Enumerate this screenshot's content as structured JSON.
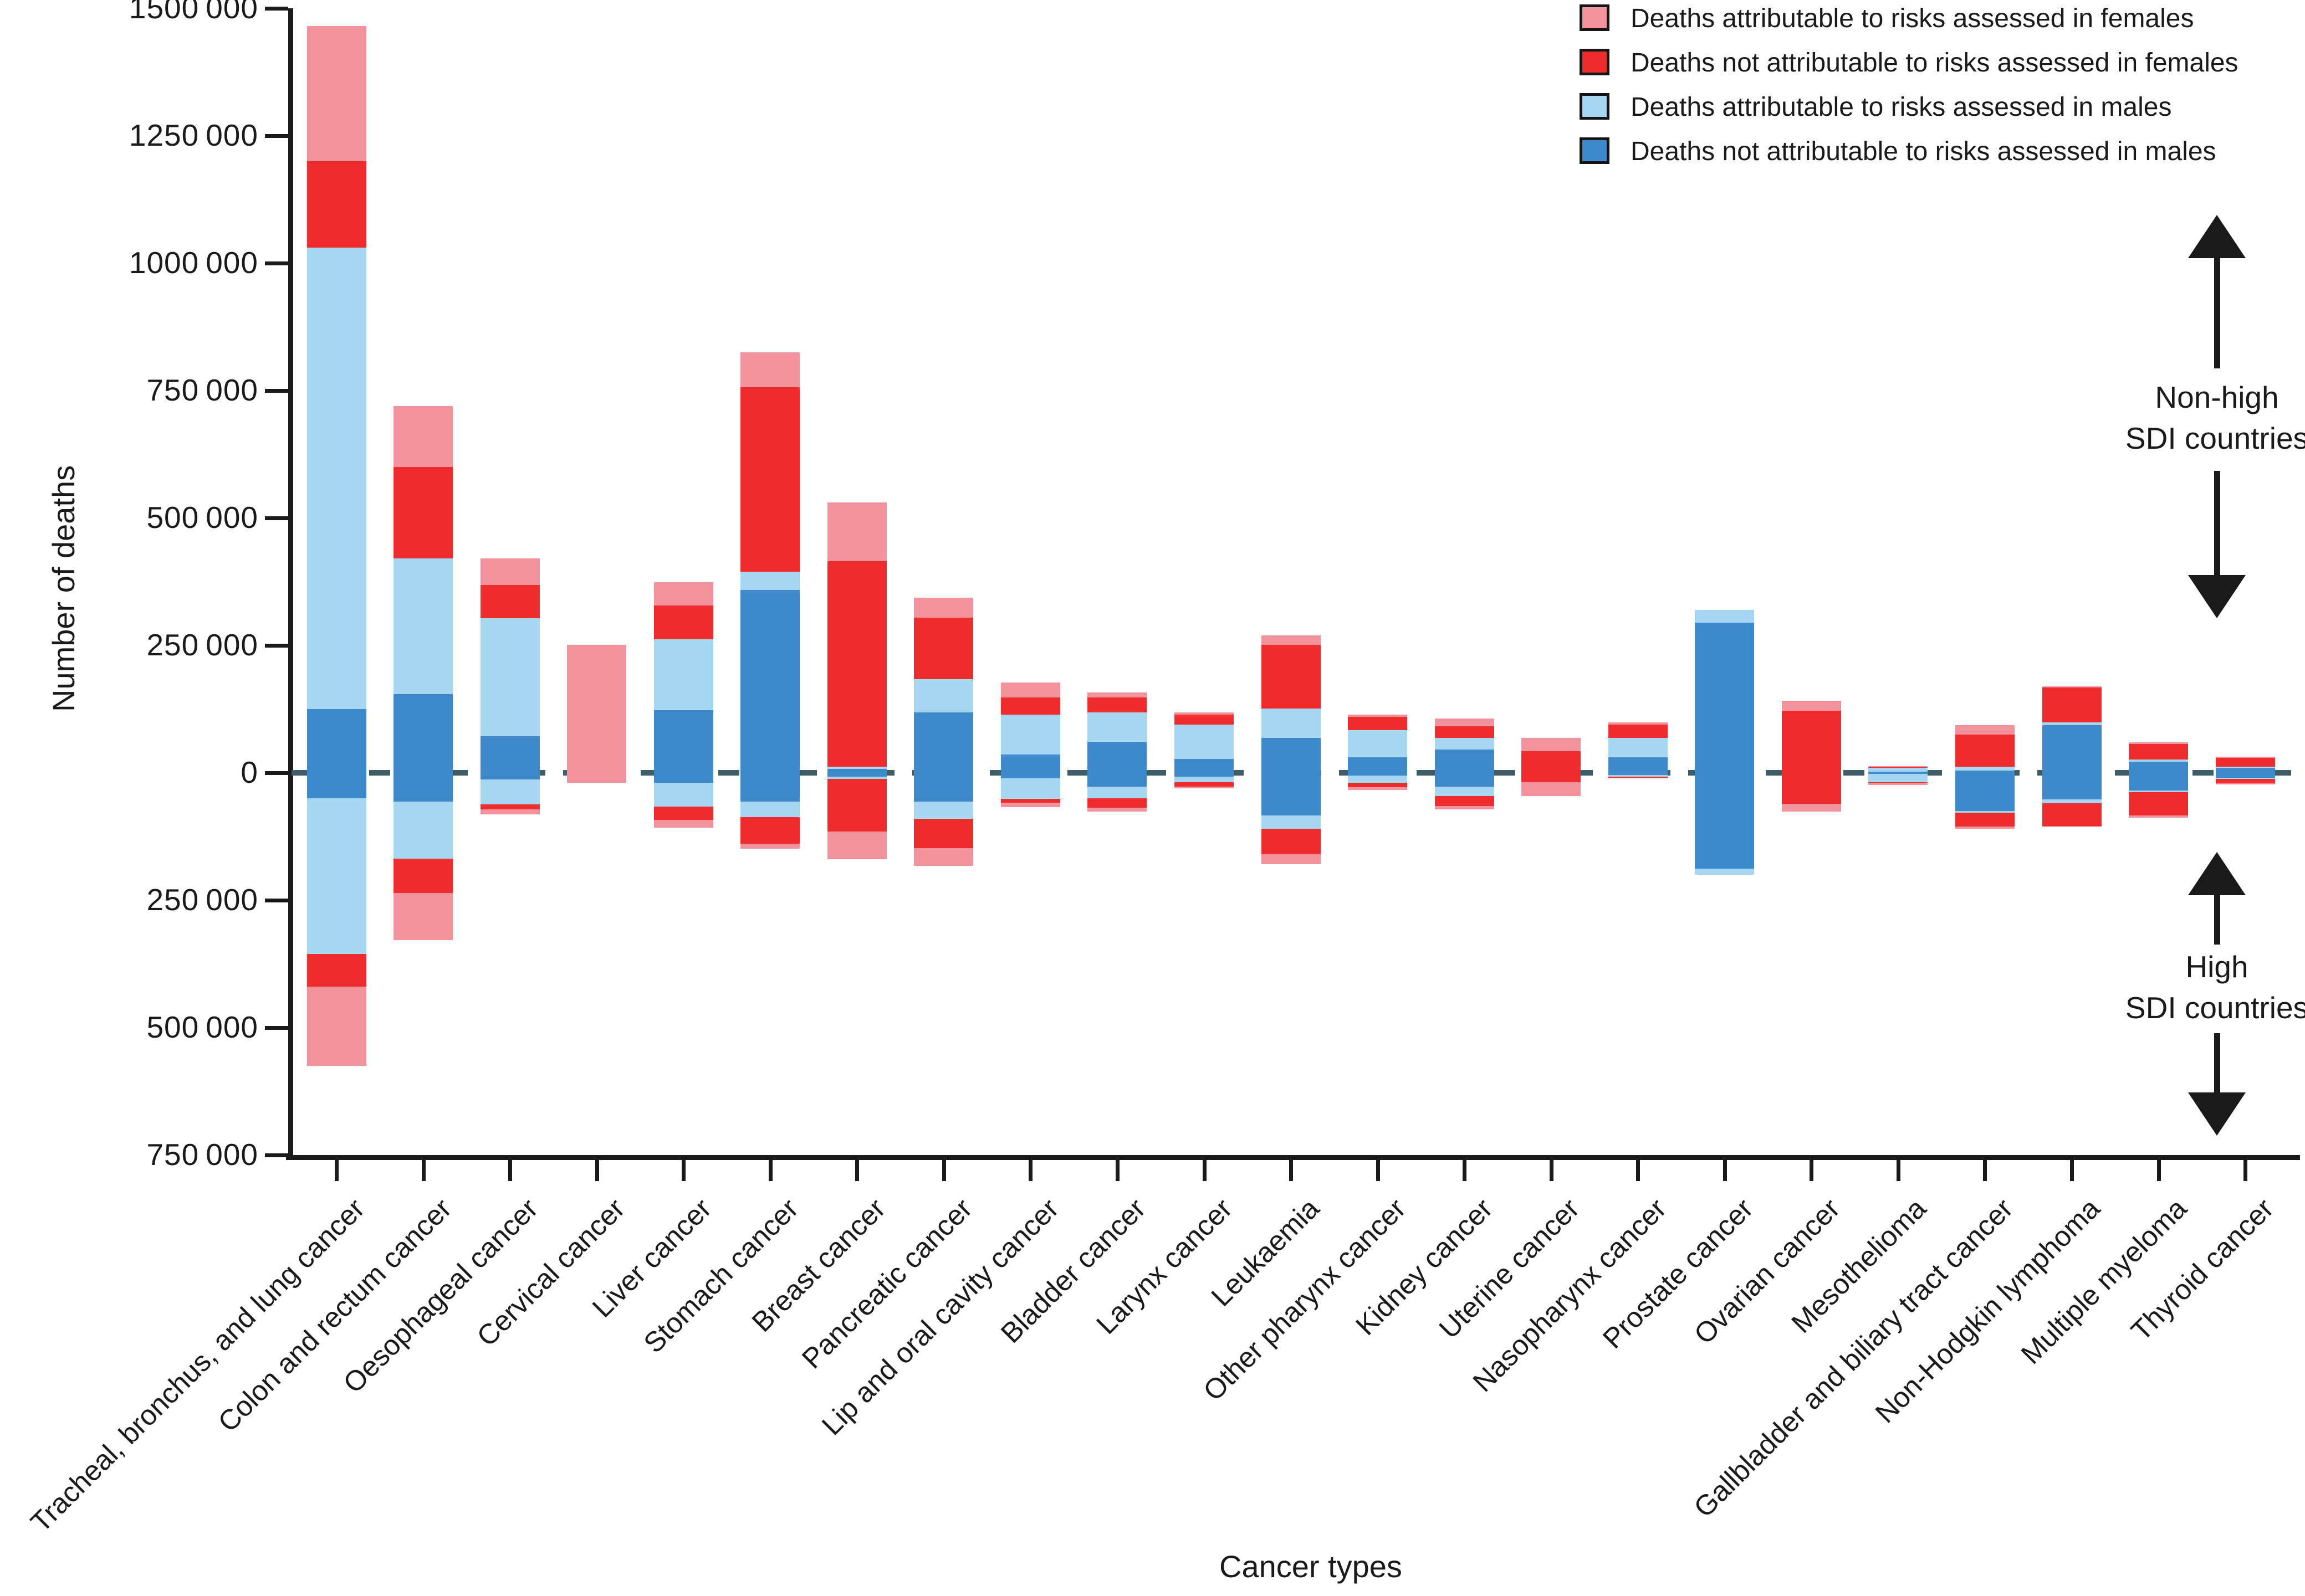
{
  "figure": {
    "y_axis": {
      "title": "Number of deaths",
      "ticks": [
        {
          "label": "1500 000",
          "value": 1500000
        },
        {
          "label": "1250 000",
          "value": 1250000
        },
        {
          "label": "1000 000",
          "value": 1000000
        },
        {
          "label": "750 000",
          "value": 750000
        },
        {
          "label": "500 000",
          "value": 500000
        },
        {
          "label": "250 000",
          "value": 250000
        },
        {
          "label": "0",
          "value": 0
        },
        {
          "label": "250 000",
          "value": -250000
        },
        {
          "label": "500 000",
          "value": -500000
        },
        {
          "label": "750 000",
          "value": -750000
        }
      ]
    },
    "x_axis": {
      "title": "Cancer types"
    },
    "legend": [
      {
        "key": "female_attributable",
        "label": "Deaths attributable to risks assessed in females"
      },
      {
        "key": "female_not_attributable",
        "label": "Deaths not attributable to risks assessed in females"
      },
      {
        "key": "male_attributable",
        "label": "Deaths attributable to risks assessed in males"
      },
      {
        "key": "male_not_attributable",
        "label": "Deaths not attributable to risks assessed in males"
      }
    ],
    "annotations": {
      "non_high_sdi": {
        "lines": [
          "Non-high",
          "SDI countries"
        ]
      },
      "high_sdi": {
        "lines": [
          "High",
          "SDI countries"
        ]
      }
    },
    "colors": {
      "female_attributable": "#F2929C",
      "female_not_attributable": "#EE2B2D",
      "male_attributable": "#A6D6F2",
      "male_not_attributable": "#3E89C9",
      "zero_line": "#3E5C66",
      "axis": "#1A1A1A"
    }
  },
  "chart_data": {
    "type": "bar",
    "subtype": "diverging-stacked",
    "title": "",
    "xlabel": "Cancer types",
    "ylabel": "Number of deaths",
    "ylim": [
      -750000,
      1500000
    ],
    "grid": false,
    "legend_position": "top-right",
    "above_zero_region": "Non-high SDI countries",
    "below_zero_region": "High SDI countries",
    "stack_order_from_zero": [
      "male_not_attributable",
      "male_attributable",
      "female_not_attributable",
      "female_attributable"
    ],
    "categories": [
      "Tracheal, bronchus, and lung cancer",
      "Colon and rectum cancer",
      "Oesophageal cancer",
      "Cervical cancer",
      "Liver cancer",
      "Stomach cancer",
      "Breast cancer",
      "Pancreatic cancer",
      "Lip and oral cavity cancer",
      "Bladder cancer",
      "Larynx cancer",
      "Leukaemia",
      "Other pharynx cancer",
      "Kidney cancer",
      "Uterine cancer",
      "Nasopharynx cancer",
      "Prostate cancer",
      "Ovarian cancer",
      "Mesothelioma",
      "Gallbladder and biliary tract cancer",
      "Non-Hodgkin lymphoma",
      "Multiple myeloma",
      "Thyroid cancer"
    ],
    "bars": [
      {
        "category": "Tracheal, bronchus, and lung cancer",
        "non_high_sdi": {
          "male_not_attributable": 125000,
          "male_attributable": 905000,
          "female_not_attributable": 170000,
          "female_attributable": 265000
        },
        "high_sdi": {
          "male_not_attributable": 50000,
          "male_attributable": 305000,
          "female_not_attributable": 65000,
          "female_attributable": 155000
        }
      },
      {
        "category": "Colon and rectum cancer",
        "non_high_sdi": {
          "male_not_attributable": 154000,
          "male_attributable": 267000,
          "female_not_attributable": 179000,
          "female_attributable": 120000
        },
        "high_sdi": {
          "male_not_attributable": 56000,
          "male_attributable": 113000,
          "female_not_attributable": 67000,
          "female_attributable": 92000
        }
      },
      {
        "category": "Oesophageal cancer",
        "non_high_sdi": {
          "male_not_attributable": 72000,
          "male_attributable": 231000,
          "female_not_attributable": 66000,
          "female_attributable": 52000
        },
        "high_sdi": {
          "male_not_attributable": 13000,
          "male_attributable": 49000,
          "female_not_attributable": 10000,
          "female_attributable": 10000
        }
      },
      {
        "category": "Cervical cancer",
        "non_high_sdi": {
          "male_not_attributable": 0,
          "male_attributable": 0,
          "female_not_attributable": 0,
          "female_attributable": 251000
        },
        "high_sdi": {
          "male_not_attributable": 0,
          "male_attributable": 0,
          "female_not_attributable": 0,
          "female_attributable": 20000
        }
      },
      {
        "category": "Liver cancer",
        "non_high_sdi": {
          "male_not_attributable": 123000,
          "male_attributable": 139000,
          "female_not_attributable": 66000,
          "female_attributable": 46000
        },
        "high_sdi": {
          "male_not_attributable": 20000,
          "male_attributable": 46000,
          "female_not_attributable": 26000,
          "female_attributable": 16000
        }
      },
      {
        "category": "Stomach cancer",
        "non_high_sdi": {
          "male_not_attributable": 359000,
          "male_attributable": 36000,
          "female_not_attributable": 361000,
          "female_attributable": 69000
        },
        "high_sdi": {
          "male_not_attributable": 56000,
          "male_attributable": 31000,
          "female_not_attributable": 52000,
          "female_attributable": 10000
        }
      },
      {
        "category": "Breast cancer",
        "non_high_sdi": {
          "male_not_attributable": 8000,
          "male_attributable": 4000,
          "female_not_attributable": 403000,
          "female_attributable": 115000
        },
        "high_sdi": {
          "male_not_attributable": 8000,
          "male_attributable": 4000,
          "female_not_attributable": 103000,
          "female_attributable": 55000
        }
      },
      {
        "category": "Pancreatic cancer",
        "non_high_sdi": {
          "male_not_attributable": 118000,
          "male_attributable": 66000,
          "female_not_attributable": 120000,
          "female_attributable": 40000
        },
        "high_sdi": {
          "male_not_attributable": 57000,
          "male_attributable": 33000,
          "female_not_attributable": 58000,
          "female_attributable": 35000
        }
      },
      {
        "category": "Lip and oral cavity cancer",
        "non_high_sdi": {
          "male_not_attributable": 36000,
          "male_attributable": 78000,
          "female_not_attributable": 34000,
          "female_attributable": 29000
        },
        "high_sdi": {
          "male_not_attributable": 11000,
          "male_attributable": 40000,
          "female_not_attributable": 8000,
          "female_attributable": 8000
        }
      },
      {
        "category": "Bladder cancer",
        "non_high_sdi": {
          "male_not_attributable": 61000,
          "male_attributable": 57000,
          "female_not_attributable": 30000,
          "female_attributable": 10000
        },
        "high_sdi": {
          "male_not_attributable": 27000,
          "male_attributable": 23000,
          "female_not_attributable": 19000,
          "female_attributable": 7000
        }
      },
      {
        "category": "Larynx cancer",
        "non_high_sdi": {
          "male_not_attributable": 27000,
          "male_attributable": 68000,
          "female_not_attributable": 19000,
          "female_attributable": 4000
        },
        "high_sdi": {
          "male_not_attributable": 8000,
          "male_attributable": 11000,
          "female_not_attributable": 8000,
          "female_attributable": 3000
        }
      },
      {
        "category": "Leukaemia",
        "non_high_sdi": {
          "male_not_attributable": 68000,
          "male_attributable": 58000,
          "female_not_attributable": 125000,
          "female_attributable": 19000
        },
        "high_sdi": {
          "male_not_attributable": 84000,
          "male_attributable": 26000,
          "female_not_attributable": 50000,
          "female_attributable": 19000
        }
      },
      {
        "category": "Other pharynx cancer",
        "non_high_sdi": {
          "male_not_attributable": 30000,
          "male_attributable": 54000,
          "female_not_attributable": 26000,
          "female_attributable": 4000
        },
        "high_sdi": {
          "male_not_attributable": 5000,
          "male_attributable": 15000,
          "female_not_attributable": 8000,
          "female_attributable": 6000
        }
      },
      {
        "category": "Kidney cancer",
        "non_high_sdi": {
          "male_not_attributable": 46000,
          "male_attributable": 22000,
          "female_not_attributable": 23000,
          "female_attributable": 16000
        },
        "high_sdi": {
          "male_not_attributable": 27000,
          "male_attributable": 19000,
          "female_not_attributable": 19000,
          "female_attributable": 7000
        }
      },
      {
        "category": "Uterine cancer",
        "non_high_sdi": {
          "male_not_attributable": 0,
          "male_attributable": 0,
          "female_not_attributable": 42000,
          "female_attributable": 26000
        },
        "high_sdi": {
          "male_not_attributable": 0,
          "male_attributable": 0,
          "female_not_attributable": 19000,
          "female_attributable": 27000
        }
      },
      {
        "category": "Nasopharynx cancer",
        "non_high_sdi": {
          "male_not_attributable": 30000,
          "male_attributable": 38000,
          "female_not_attributable": 27000,
          "female_attributable": 4000
        },
        "high_sdi": {
          "male_not_attributable": 4000,
          "male_attributable": 4000,
          "female_not_attributable": 2000,
          "female_attributable": 1000
        }
      },
      {
        "category": "Prostate cancer",
        "non_high_sdi": {
          "male_not_attributable": 295000,
          "male_attributable": 25000,
          "female_not_attributable": 0,
          "female_attributable": 0
        },
        "high_sdi": {
          "male_not_attributable": 188000,
          "male_attributable": 12000,
          "female_not_attributable": 0,
          "female_attributable": 0
        }
      },
      {
        "category": "Ovarian cancer",
        "non_high_sdi": {
          "male_not_attributable": 0,
          "male_attributable": 0,
          "female_not_attributable": 122000,
          "female_attributable": 19000
        },
        "high_sdi": {
          "male_not_attributable": 0,
          "male_attributable": 0,
          "female_not_attributable": 61000,
          "female_attributable": 15000
        }
      },
      {
        "category": "Mesothelioma",
        "non_high_sdi": {
          "male_not_attributable": 2000,
          "male_attributable": 8000,
          "female_not_attributable": 1000,
          "female_attributable": 2000
        },
        "high_sdi": {
          "male_not_attributable": 2000,
          "male_attributable": 16000,
          "female_not_attributable": 2000,
          "female_attributable": 4000
        }
      },
      {
        "category": "Gallbladder and biliary tract cancer",
        "non_high_sdi": {
          "male_not_attributable": 4000,
          "male_attributable": 8000,
          "female_not_attributable": 63000,
          "female_attributable": 18000
        },
        "high_sdi": {
          "male_not_attributable": 75000,
          "male_attributable": 3000,
          "female_not_attributable": 27000,
          "female_attributable": 5000
        }
      },
      {
        "category": "Non-Hodgkin lymphoma",
        "non_high_sdi": {
          "male_not_attributable": 94000,
          "male_attributable": 5000,
          "female_not_attributable": 68000,
          "female_attributable": 3000
        },
        "high_sdi": {
          "male_not_attributable": 52000,
          "male_attributable": 8000,
          "female_not_attributable": 44000,
          "female_attributable": 3000
        }
      },
      {
        "category": "Multiple myeloma",
        "non_high_sdi": {
          "male_not_attributable": 22000,
          "male_attributable": 4000,
          "female_not_attributable": 31000,
          "female_attributable": 3000
        },
        "high_sdi": {
          "male_not_attributable": 35000,
          "male_attributable": 3000,
          "female_not_attributable": 46000,
          "female_attributable": 4000
        }
      },
      {
        "category": "Thyroid cancer",
        "non_high_sdi": {
          "male_not_attributable": 10000,
          "male_attributable": 2000,
          "female_not_attributable": 17000,
          "female_attributable": 3000
        },
        "high_sdi": {
          "male_not_attributable": 10000,
          "male_attributable": 2000,
          "female_not_attributable": 9000,
          "female_attributable": 2000
        }
      }
    ]
  }
}
